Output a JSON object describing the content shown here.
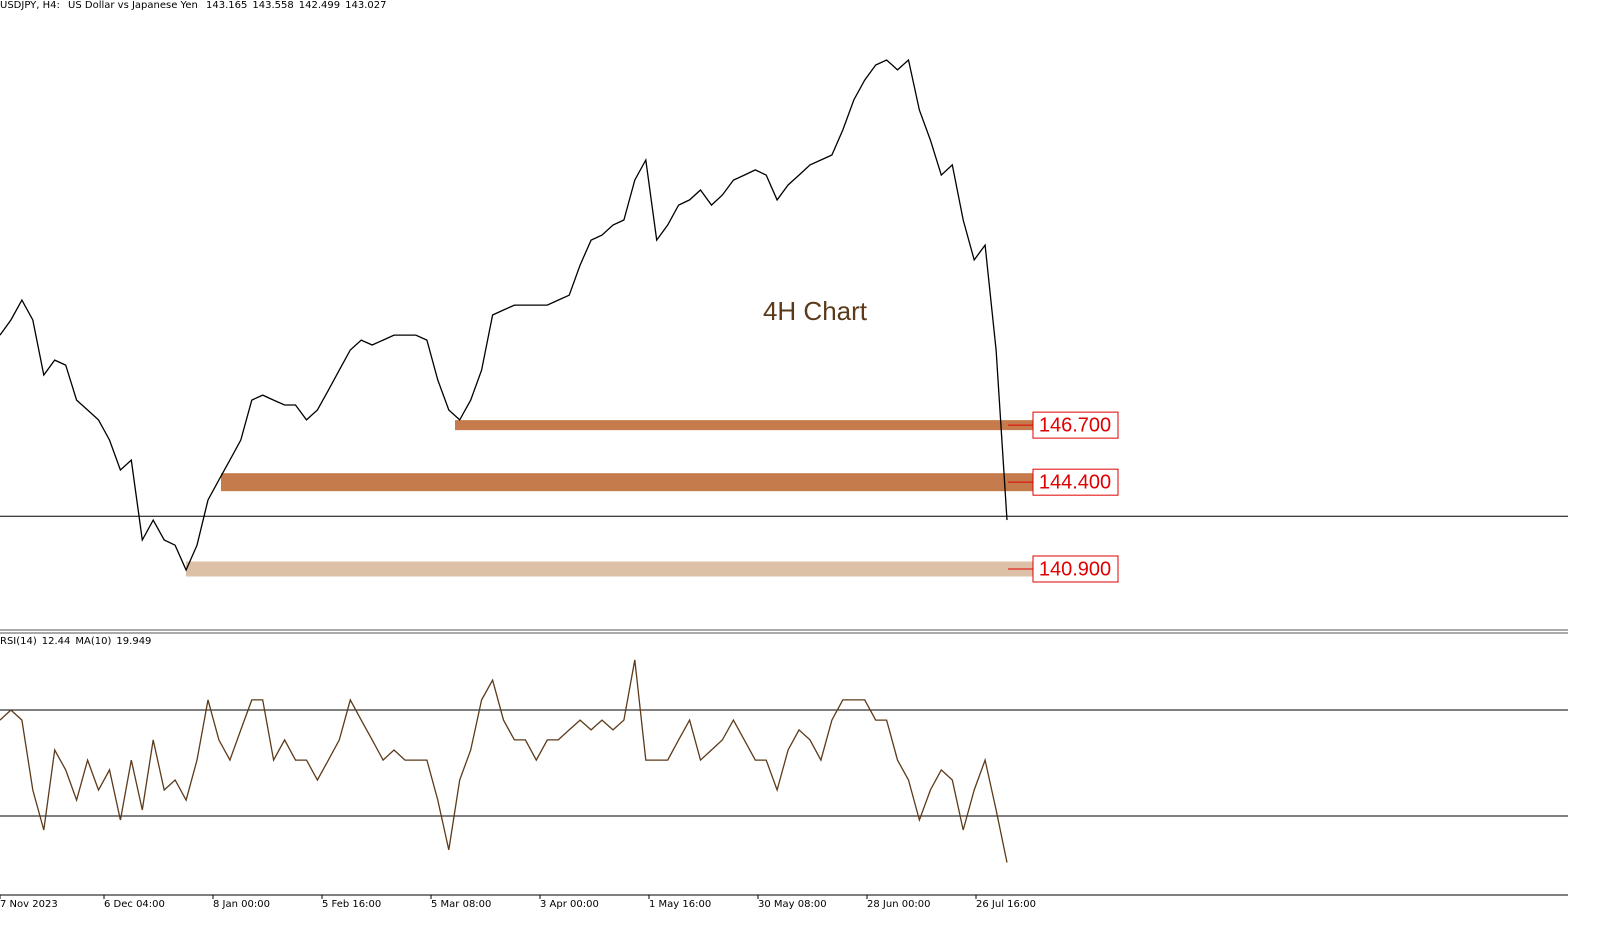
{
  "chart_data": [
    {
      "type": "line",
      "title": "USDJPY, H4:",
      "subtitle": "US Dollar vs Japanese Yen",
      "ohlc": [
        143.165,
        143.558,
        142.499,
        143.027
      ],
      "annotation": "4H Chart",
      "ylim": [
        138.44,
        163.84
      ],
      "series": [
        {
          "name": "USDJPY",
          "color": "#000000",
          "values": [
            150.33,
            150.94,
            151.74,
            150.94,
            148.72,
            149.32,
            149.12,
            147.71,
            147.31,
            146.91,
            146.1,
            144.89,
            145.29,
            142.07,
            142.87,
            142.07,
            141.86,
            140.86,
            141.86,
            143.68,
            144.49,
            145.29,
            146.1,
            147.71,
            147.91,
            147.71,
            147.51,
            147.51,
            146.91,
            147.31,
            148.11,
            148.92,
            149.73,
            150.13,
            149.93,
            150.13,
            150.33,
            150.33,
            150.33,
            150.13,
            148.52,
            147.31,
            146.91,
            147.71,
            148.92,
            151.14,
            151.34,
            151.54,
            151.54,
            151.54,
            151.54,
            151.74,
            151.94,
            153.15,
            154.16,
            154.36,
            154.77,
            154.97,
            156.58,
            157.39,
            154.16,
            154.77,
            155.57,
            155.78,
            156.18,
            155.57,
            155.98,
            156.58,
            156.78,
            156.99,
            156.78,
            155.78,
            156.38,
            156.78,
            157.19,
            157.39,
            157.59,
            158.6,
            159.81,
            160.61,
            161.22,
            161.42,
            161.02,
            161.42,
            159.4,
            158.19,
            156.78,
            157.19,
            154.97,
            153.36,
            153.96,
            149.73,
            142.87
          ]
        }
      ],
      "levels": [
        {
          "value": 146.7,
          "label": "146.700",
          "color": "#c57b4b"
        },
        {
          "value": 144.4,
          "label": "144.400",
          "color": "#c57b4b"
        },
        {
          "value": 140.9,
          "label": "140.900",
          "color": "#dcc1a6"
        }
      ]
    },
    {
      "type": "line",
      "title": "RSI(14)",
      "value": 12.44,
      "ma_name": "MA(10)",
      "ma_value": 19.949,
      "ylim": [
        0,
        100
      ],
      "levels": [
        70,
        30
      ],
      "x_labels": [
        "7 Nov 2023",
        "6 Dec 04:00",
        "8 Jan 00:00",
        "5 Feb 16:00",
        "5 Mar 08:00",
        "3 Apr 00:00",
        "1 May 16:00",
        "30 May 08:00",
        "28 Jun 00:00",
        "26 Jul 16:00"
      ],
      "series": [
        {
          "name": "RSI(14)",
          "color": "#5c3a1a",
          "values": [
            66.2,
            70.0,
            66.2,
            39.8,
            24.7,
            54.9,
            47.4,
            36.0,
            51.1,
            39.8,
            47.4,
            28.5,
            51.1,
            32.3,
            58.7,
            39.8,
            43.6,
            36.0,
            51.1,
            73.8,
            58.7,
            51.1,
            62.5,
            73.8,
            73.8,
            51.1,
            58.7,
            51.1,
            51.1,
            43.6,
            51.1,
            58.7,
            73.8,
            66.2,
            58.7,
            51.1,
            54.9,
            51.1,
            51.1,
            51.1,
            36.0,
            17.2,
            43.6,
            54.9,
            73.8,
            81.3,
            66.2,
            58.7,
            58.7,
            51.1,
            58.7,
            58.7,
            62.5,
            66.2,
            62.5,
            66.2,
            62.5,
            66.2,
            88.9,
            51.1,
            51.1,
            51.1,
            58.7,
            66.2,
            51.1,
            54.9,
            58.7,
            66.2,
            58.7,
            51.1,
            51.1,
            39.8,
            54.9,
            62.5,
            58.7,
            51.1,
            66.2,
            73.8,
            73.8,
            73.8,
            66.2,
            66.2,
            51.1,
            43.6,
            28.5,
            39.8,
            47.4,
            43.6,
            24.7,
            39.8,
            51.1,
            32.3,
            12.44
          ]
        }
      ]
    }
  ]
}
